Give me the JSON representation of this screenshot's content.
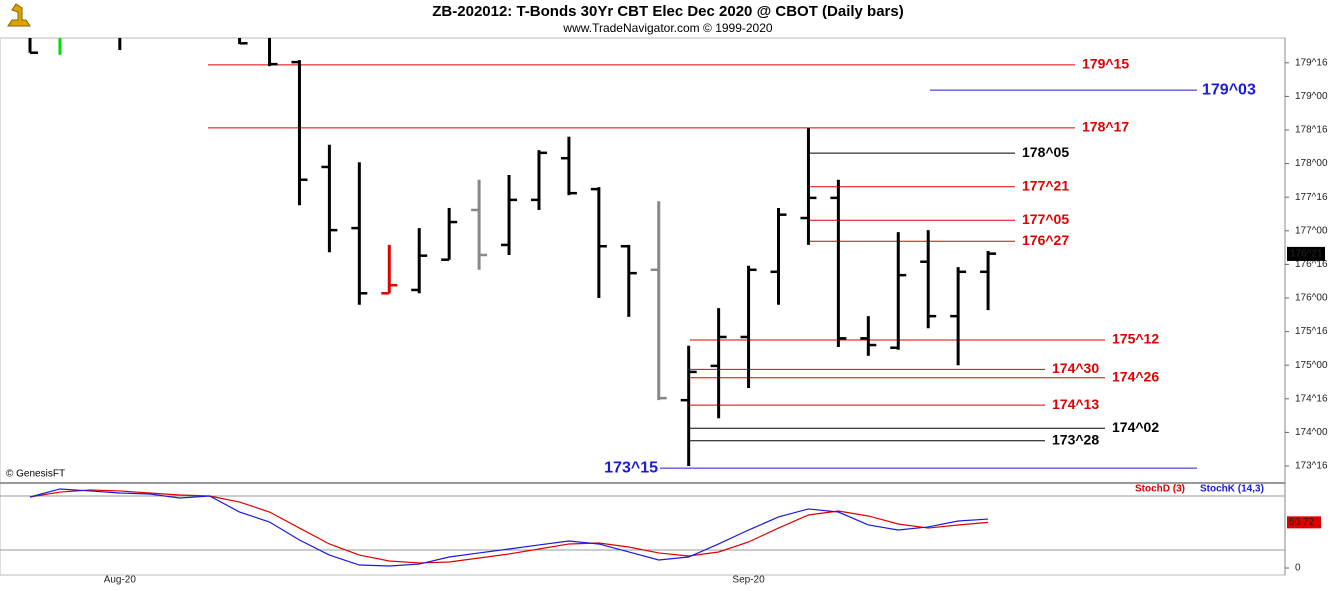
{
  "chart_data": {
    "type": "ohlc",
    "title": "ZB-202012:  T-Bonds 30Yr CBT Elec Dec 2020 @ CBOT  (Daily bars)",
    "subtitle": "www.TradeNavigator.com © 1999-2020",
    "credit": "© GenesisFT",
    "categories": [
      null,
      null,
      null,
      "Aug-20",
      null,
      null,
      null,
      null,
      null,
      null,
      null,
      null,
      null,
      null,
      null,
      null,
      null,
      null,
      null,
      null,
      null,
      null,
      null,
      null,
      "Sep-20",
      null,
      null,
      null,
      null,
      null,
      null,
      null,
      null
    ],
    "open": [
      null,
      null,
      null,
      null,
      null,
      null,
      null,
      null,
      null,
      179.51,
      177.95,
      177.04,
      176.07,
      176.12,
      176.57,
      177.31,
      176.79,
      177.46,
      178.08,
      177.62,
      176.77,
      176.42,
      174.48,
      174.99,
      175.42,
      176.39,
      177.19,
      177.49,
      175.4,
      175.26,
      176.54,
      175.73,
      176.39
    ],
    "high": [
      null,
      null,
      null,
      null,
      null,
      null,
      null,
      null,
      null,
      179.54,
      178.28,
      178.02,
      176.79,
      177.04,
      177.34,
      177.76,
      177.83,
      178.2,
      178.4,
      177.65,
      176.79,
      177.44,
      175.29,
      175.85,
      176.48,
      177.34,
      178.53,
      177.76,
      175.73,
      176.98,
      177.01,
      176.46,
      176.7
    ],
    "low": [
      179.65,
      179.62,
      null,
      179.69,
      null,
      null,
      null,
      179.78,
      179.45,
      177.38,
      176.68,
      175.9,
      176.07,
      176.07,
      176.57,
      176.42,
      176.64,
      177.31,
      177.53,
      176.0,
      175.72,
      174.48,
      173.5,
      174.21,
      174.66,
      175.9,
      176.79,
      175.27,
      175.14,
      175.23,
      175.55,
      175.0,
      175.82
    ],
    "close": [
      179.65,
      null,
      null,
      null,
      null,
      null,
      null,
      179.79,
      179.48,
      177.76,
      177.01,
      176.07,
      176.19,
      176.63,
      177.13,
      176.64,
      177.46,
      178.16,
      177.56,
      176.77,
      176.37,
      174.51,
      174.9,
      175.42,
      176.42,
      177.24,
      177.49,
      175.4,
      175.3,
      176.34,
      175.73,
      176.39,
      176.66
    ],
    "bar_colors": [
      "#000000",
      "#00dd00",
      null,
      "#000000",
      null,
      null,
      null,
      "#000000",
      "#000000",
      "#000000",
      "#000000",
      "#000000",
      "#e00000",
      "#000000",
      "#000000",
      "#888888",
      "#000000",
      "#000000",
      "#000000",
      "#000000",
      "#000000",
      "#888888",
      "#000000",
      "#000000",
      "#000000",
      "#000000",
      "#000000",
      "#000000",
      "#000000",
      "#000000",
      "#000000",
      "#000000",
      "#000000"
    ],
    "ylim": [
      173.262,
      179.869
    ],
    "yticks": [
      {
        "value": 173.5,
        "label": "173^16"
      },
      {
        "value": 174,
        "label": "174^00"
      },
      {
        "value": 174.5,
        "label": "174^16"
      },
      {
        "value": 175,
        "label": "175^00"
      },
      {
        "value": 175.5,
        "label": "175^16"
      },
      {
        "value": 176,
        "label": "176^00"
      },
      {
        "value": 176.5,
        "label": "176^16"
      },
      {
        "value": 177,
        "label": "177^00"
      },
      {
        "value": 177.5,
        "label": "177^16"
      },
      {
        "value": 178,
        "label": "178^00"
      },
      {
        "value": 178.5,
        "label": "178^16"
      },
      {
        "value": 179,
        "label": "179^00"
      },
      {
        "value": 179.5,
        "label": "179^16"
      }
    ],
    "last_price": {
      "value": 176.65625,
      "label": "176^21"
    },
    "levels": [
      {
        "value": 179.46875,
        "label": "179^15",
        "color": "#e00000"
      },
      {
        "value": 179.09375,
        "label": "179^03",
        "color": "#1a1adc"
      },
      {
        "value": 178.53125,
        "label": "178^17",
        "color": "#e00000"
      },
      {
        "value": 178.15625,
        "label": "178^05",
        "color": "#000000"
      },
      {
        "value": 177.65625,
        "label": "177^21",
        "color": "#e00000"
      },
      {
        "value": 177.15625,
        "label": "177^05",
        "color": "#e00000"
      },
      {
        "value": 176.84375,
        "label": "176^27",
        "color": "#e00000"
      },
      {
        "value": 175.375,
        "label": "175^12",
        "color": "#e00000"
      },
      {
        "value": 174.9375,
        "label": "174^30",
        "color": "#e00000"
      },
      {
        "value": 174.8125,
        "label": "174^26",
        "color": "#e00000"
      },
      {
        "value": 174.40625,
        "label": "174^13",
        "color": "#e00000"
      },
      {
        "value": 174.0625,
        "label": "174^02",
        "color": "#000000"
      },
      {
        "value": 173.875,
        "label": "173^28",
        "color": "#000000"
      },
      {
        "value": 173.46875,
        "label": "173^15",
        "color": "#1a1adc"
      }
    ],
    "stoch": {
      "ylim": [
        -7.78,
        93.33
      ],
      "yticks": [
        0
      ],
      "hlines": [
        20,
        80
      ],
      "series": [
        {
          "name": "StochD (3)",
          "color": "#e00000",
          "values": [
            78.9,
            84.4,
            86.7,
            85.6,
            83.3,
            81.1,
            80.0,
            73.3,
            62.2,
            44.4,
            26.7,
            14.4,
            7.8,
            5.6,
            6.7,
            11.1,
            15.6,
            21.1,
            26.7,
            27.8,
            23.3,
            16.7,
            13.3,
            17.8,
            28.9,
            44.4,
            58.9,
            63.3,
            57.8,
            48.9,
            44.4,
            47.8,
            50.72
          ],
          "last_label": "50.72"
        },
        {
          "name": "StochK (14,3)",
          "color": "#1a1adc",
          "values": [
            78.9,
            87.8,
            85.6,
            83.3,
            82.2,
            77.8,
            80.0,
            62.2,
            51.1,
            31.1,
            14.4,
            3.3,
            2.2,
            4.4,
            12.2,
            16.7,
            21.1,
            25.6,
            30.0,
            26.7,
            17.8,
            8.9,
            12.2,
            26.7,
            42.2,
            56.7,
            65.6,
            62.2,
            47.8,
            42.2,
            45.6,
            52.2,
            54.4
          ]
        }
      ]
    }
  }
}
